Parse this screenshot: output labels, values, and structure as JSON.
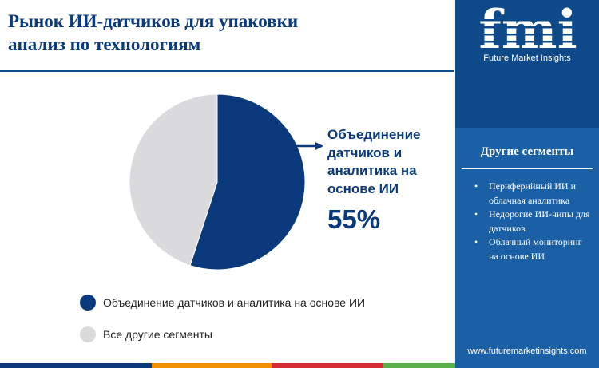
{
  "page": {
    "title_line1": "Рынок ИИ-датчиков для упаковки",
    "title_line2": "анализ по технологиям"
  },
  "chart_data": {
    "type": "pie",
    "title": "Рынок ИИ-датчиков для упаковки анализ по технологиям",
    "slices": [
      {
        "label": "Объединение датчиков и аналитика на основе ИИ",
        "value": 55,
        "color": "#0a3a7c"
      },
      {
        "label": "Все другие сегменты",
        "value": 45,
        "color": "#dadadd"
      }
    ],
    "start_angle_deg": 0,
    "direction": "clockwise",
    "legend_position": "bottom-left",
    "callout": {
      "lines": [
        "Объединение",
        "датчиков и",
        "аналитика на",
        "основе ИИ"
      ],
      "value_text": "55%"
    }
  },
  "sidebar": {
    "logo_text": "fmi",
    "logo_caption": "Future Market Insights",
    "other_title": "Другие сегменты",
    "other_segments": [
      "Периферийный ИИ и облачная аналитика",
      "Недорогие ИИ-чипы для датчиков",
      "Облачный мониторинг на основе ИИ"
    ],
    "website": "www.futuremarketinsights.com"
  },
  "colors": {
    "brand_dark": "#0a3a7c",
    "sidebar_bg": "#1b5fa5",
    "bottom_stripes": [
      "#0a3a7c",
      "#f39200",
      "#d62d35",
      "#5ab14c"
    ]
  },
  "icons": [
    "arrow-right-icon",
    "fmi-logo-icon",
    "bullet-icon"
  ]
}
